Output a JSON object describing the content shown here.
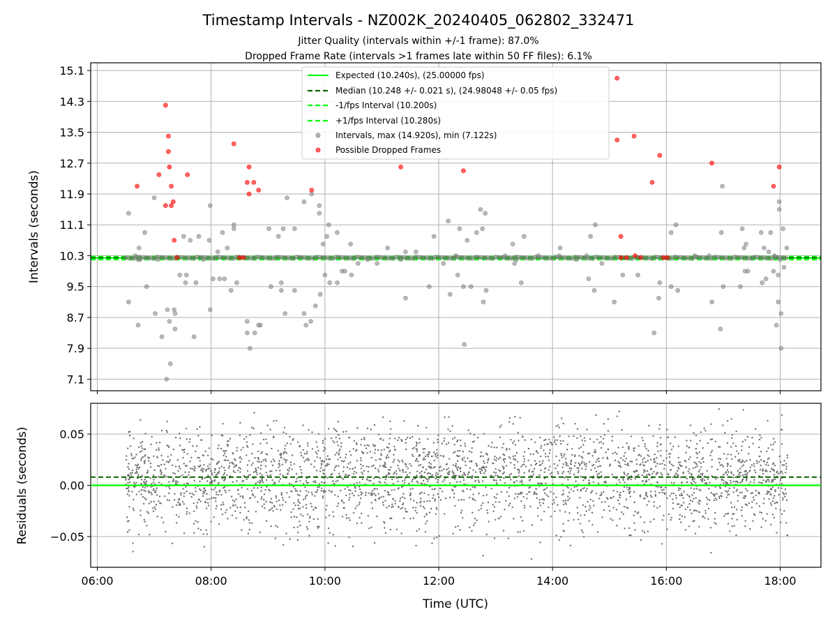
{
  "chart_data": [
    {
      "type": "scatter",
      "title": "Timestamp Intervals - NZ002K_20240405_062802_332471",
      "subtitle_lines": [
        "Jitter Quality (intervals within +/-1 frame): 87.0%",
        "Dropped Frame Rate (intervals >1 frames late within 50 FF files): 6.1%"
      ],
      "ylabel": "Intervals (seconds)",
      "xlim": [
        "05:53",
        "18:43"
      ],
      "ylim": [
        6.8,
        15.3
      ],
      "y_ticks": [
        7.1,
        7.9,
        8.7,
        9.5,
        10.3,
        11.1,
        11.9,
        12.7,
        13.5,
        14.3,
        15.1
      ],
      "grid": true,
      "legend_position": "top-center",
      "legend": [
        "Expected (10.240s), (25.00000 fps)",
        "Median (10.248 +/- 0.021 s), (24.98048 +/- 0.05 fps)",
        "-1/fps Interval (10.200s)",
        "+1/fps Interval (10.280s)",
        "Intervals, max (14.920s), min (7.122s)",
        "Possible Dropped Frames"
      ],
      "reference_lines": {
        "expected": 10.24,
        "median": 10.248,
        "minus_one_frame": 10.2,
        "plus_one_frame": 10.28
      },
      "baseline": {
        "value": 10.248,
        "start": "06:30",
        "end": "18:08"
      },
      "series": [
        {
          "name": "Intervals, max (14.920s), min (7.122s)",
          "points": [
            [
              "06:33",
              11.4
            ],
            [
              "06:33",
              9.1
            ],
            [
              "06:40",
              10.3
            ],
            [
              "06:43",
              10.2
            ],
            [
              "06:44",
              10.5
            ],
            [
              "06:45",
              10.2
            ],
            [
              "06:43",
              8.5
            ],
            [
              "06:50",
              10.9
            ],
            [
              "06:52",
              9.5
            ],
            [
              "07:00",
              11.8
            ],
            [
              "07:01",
              8.8
            ],
            [
              "07:04",
              10.2
            ],
            [
              "07:08",
              8.2
            ],
            [
              "07:13",
              7.1
            ],
            [
              "07:14",
              8.9
            ],
            [
              "07:17",
              7.5
            ],
            [
              "07:16",
              8.6
            ],
            [
              "07:21",
              8.9
            ],
            [
              "07:22",
              8.4
            ],
            [
              "07:22",
              8.8
            ],
            [
              "07:27",
              9.8
            ],
            [
              "07:31",
              10.8
            ],
            [
              "07:33",
              9.6
            ],
            [
              "07:34",
              9.8
            ],
            [
              "07:38",
              10.7
            ],
            [
              "07:42",
              8.2
            ],
            [
              "07:44",
              9.6
            ],
            [
              "07:47",
              10.8
            ],
            [
              "07:52",
              10.2
            ],
            [
              "07:59",
              11.6
            ],
            [
              "07:58",
              10.7
            ],
            [
              "07:59",
              8.9
            ],
            [
              "08:02",
              9.7
            ],
            [
              "08:07",
              10.4
            ],
            [
              "08:09",
              9.7
            ],
            [
              "08:12",
              10.9
            ],
            [
              "08:14",
              9.7
            ],
            [
              "08:17",
              10.5
            ],
            [
              "08:21",
              9.4
            ],
            [
              "08:24",
              11.0
            ],
            [
              "08:24",
              11.1
            ],
            [
              "08:27",
              9.6
            ],
            [
              "08:38",
              8.6
            ],
            [
              "08:38",
              8.3
            ],
            [
              "08:41",
              7.9
            ],
            [
              "08:46",
              8.3
            ],
            [
              "08:50",
              8.5
            ],
            [
              "08:52",
              8.5
            ],
            [
              "09:01",
              11.0
            ],
            [
              "09:03",
              9.5
            ],
            [
              "09:11",
              10.8
            ],
            [
              "09:14",
              9.6
            ],
            [
              "09:14",
              9.4
            ],
            [
              "09:16",
              11.0
            ],
            [
              "09:18",
              8.8
            ],
            [
              "09:20",
              11.8
            ],
            [
              "09:28",
              11.0
            ],
            [
              "09:28",
              9.4
            ],
            [
              "09:38",
              11.7
            ],
            [
              "09:38",
              8.8
            ],
            [
              "09:40",
              8.5
            ],
            [
              "09:45",
              8.6
            ],
            [
              "09:46",
              11.9
            ],
            [
              "09:50",
              9.0
            ],
            [
              "09:54",
              11.6
            ],
            [
              "09:54",
              11.4
            ],
            [
              "09:55",
              9.3
            ],
            [
              "09:58",
              10.6
            ],
            [
              "10:00",
              9.8
            ],
            [
              "10:02",
              10.8
            ],
            [
              "10:04",
              11.1
            ],
            [
              "10:05",
              9.6
            ],
            [
              "10:13",
              9.6
            ],
            [
              "10:13",
              10.9
            ],
            [
              "10:18",
              9.9
            ],
            [
              "10:21",
              9.9
            ],
            [
              "10:27",
              10.6
            ],
            [
              "10:28",
              9.8
            ],
            [
              "10:35",
              10.1
            ],
            [
              "10:45",
              10.2
            ],
            [
              "10:55",
              10.1
            ],
            [
              "11:06",
              10.5
            ],
            [
              "11:20",
              10.2
            ],
            [
              "11:25",
              9.2
            ],
            [
              "11:25",
              10.4
            ],
            [
              "11:36",
              10.4
            ],
            [
              "11:50",
              9.5
            ],
            [
              "11:55",
              10.8
            ],
            [
              "12:05",
              10.1
            ],
            [
              "12:10",
              11.2
            ],
            [
              "12:12",
              9.3
            ],
            [
              "12:18",
              10.3
            ],
            [
              "12:20",
              9.8
            ],
            [
              "12:22",
              11.0
            ],
            [
              "12:26",
              9.5
            ],
            [
              "12:27",
              8.0
            ],
            [
              "12:30",
              10.7
            ],
            [
              "12:34",
              9.5
            ],
            [
              "12:40",
              10.9
            ],
            [
              "12:44",
              11.5
            ],
            [
              "12:46",
              11.0
            ],
            [
              "12:47",
              9.1
            ],
            [
              "12:49",
              11.4
            ],
            [
              "12:50",
              9.4
            ],
            [
              "13:10",
              10.3
            ],
            [
              "13:18",
              10.6
            ],
            [
              "13:20",
              10.1
            ],
            [
              "13:22",
              10.2
            ],
            [
              "13:27",
              9.6
            ],
            [
              "13:30",
              10.8
            ],
            [
              "13:45",
              10.3
            ],
            [
              "14:07",
              10.3
            ],
            [
              "14:08",
              10.5
            ],
            [
              "14:25",
              10.2
            ],
            [
              "14:36",
              10.3
            ],
            [
              "14:38",
              9.7
            ],
            [
              "14:40",
              10.8
            ],
            [
              "14:44",
              9.4
            ],
            [
              "14:45",
              11.1
            ],
            [
              "14:52",
              10.1
            ],
            [
              "15:05",
              9.1
            ],
            [
              "15:14",
              9.8
            ],
            [
              "15:30",
              9.8
            ],
            [
              "15:47",
              8.3
            ],
            [
              "15:52",
              9.2
            ],
            [
              "15:53",
              9.6
            ],
            [
              "16:05",
              9.5
            ],
            [
              "16:05",
              10.9
            ],
            [
              "16:10",
              11.1
            ],
            [
              "16:12",
              9.4
            ],
            [
              "16:30",
              10.3
            ],
            [
              "16:45",
              10.3
            ],
            [
              "16:48",
              9.1
            ],
            [
              "16:57",
              8.4
            ],
            [
              "16:58",
              10.9
            ],
            [
              "16:59",
              12.1
            ],
            [
              "17:00",
              9.5
            ],
            [
              "17:18",
              9.5
            ],
            [
              "17:20",
              11.0
            ],
            [
              "17:22",
              10.5
            ],
            [
              "17:23",
              9.9
            ],
            [
              "17:24",
              10.6
            ],
            [
              "17:26",
              9.9
            ],
            [
              "17:40",
              10.9
            ],
            [
              "17:41",
              9.6
            ],
            [
              "17:43",
              10.5
            ],
            [
              "17:45",
              9.7
            ],
            [
              "17:48",
              10.4
            ],
            [
              "17:50",
              10.9
            ],
            [
              "17:53",
              9.9
            ],
            [
              "17:54",
              10.3
            ],
            [
              "17:56",
              8.5
            ],
            [
              "17:58",
              9.1
            ],
            [
              "17:58",
              9.8
            ],
            [
              "17:59",
              11.5
            ],
            [
              "17:59",
              11.7
            ],
            [
              "18:00",
              10.2
            ],
            [
              "18:01",
              8.8
            ],
            [
              "18:01",
              7.9
            ],
            [
              "18:03",
              11.0
            ],
            [
              "18:04",
              10.0
            ],
            [
              "18:07",
              10.5
            ]
          ]
        },
        {
          "name": "Possible Dropped Frames",
          "points": [
            [
              "06:42",
              12.1
            ],
            [
              "07:05",
              12.4
            ],
            [
              "07:12",
              14.2
            ],
            [
              "07:12",
              11.6
            ],
            [
              "07:15",
              13.4
            ],
            [
              "07:15",
              13.0
            ],
            [
              "07:16",
              12.6
            ],
            [
              "07:18",
              12.1
            ],
            [
              "07:18",
              11.6
            ],
            [
              "07:20",
              11.7
            ],
            [
              "07:21",
              10.7
            ],
            [
              "07:24",
              10.25
            ],
            [
              "07:35",
              12.4
            ],
            [
              "08:24",
              13.2
            ],
            [
              "08:30",
              10.25
            ],
            [
              "08:34",
              10.25
            ],
            [
              "08:38",
              12.2
            ],
            [
              "08:40",
              11.9
            ],
            [
              "08:40",
              12.6
            ],
            [
              "08:45",
              12.2
            ],
            [
              "08:50",
              12.0
            ],
            [
              "09:46",
              12.0
            ],
            [
              "11:20",
              12.6
            ],
            [
              "12:26",
              12.5
            ],
            [
              "15:08",
              14.9
            ],
            [
              "15:08",
              13.3
            ],
            [
              "15:12",
              10.8
            ],
            [
              "15:12",
              10.25
            ],
            [
              "15:18",
              10.25
            ],
            [
              "15:26",
              13.4
            ],
            [
              "15:27",
              10.3
            ],
            [
              "15:33",
              10.25
            ],
            [
              "15:45",
              12.2
            ],
            [
              "15:53",
              12.9
            ],
            [
              "15:57",
              10.25
            ],
            [
              "16:01",
              10.25
            ],
            [
              "16:48",
              12.7
            ],
            [
              "17:53",
              12.1
            ],
            [
              "17:59",
              12.6
            ]
          ]
        }
      ]
    },
    {
      "type": "scatter",
      "xlabel": "Time (UTC)",
      "ylabel": "Residuals (seconds)",
      "xlim": [
        "05:53",
        "18:43"
      ],
      "ylim": [
        -0.08,
        0.08
      ],
      "y_ticks": [
        -0.05,
        0.0,
        0.05
      ],
      "y_tick_labels": [
        "−0.05",
        "0.00",
        "0.05"
      ],
      "x_ticks": [
        "06:00",
        "08:00",
        "10:00",
        "12:00",
        "14:00",
        "16:00",
        "18:00"
      ],
      "grid": true,
      "reference_lines": {
        "expected": 0.0,
        "median": 0.008
      },
      "series": [
        {
          "name": "",
          "start": "06:30",
          "end": "18:08",
          "count": 3000,
          "mean": 0.008,
          "sd": 0.025,
          "ylim": [
            -0.075,
            0.075
          ]
        }
      ]
    }
  ]
}
